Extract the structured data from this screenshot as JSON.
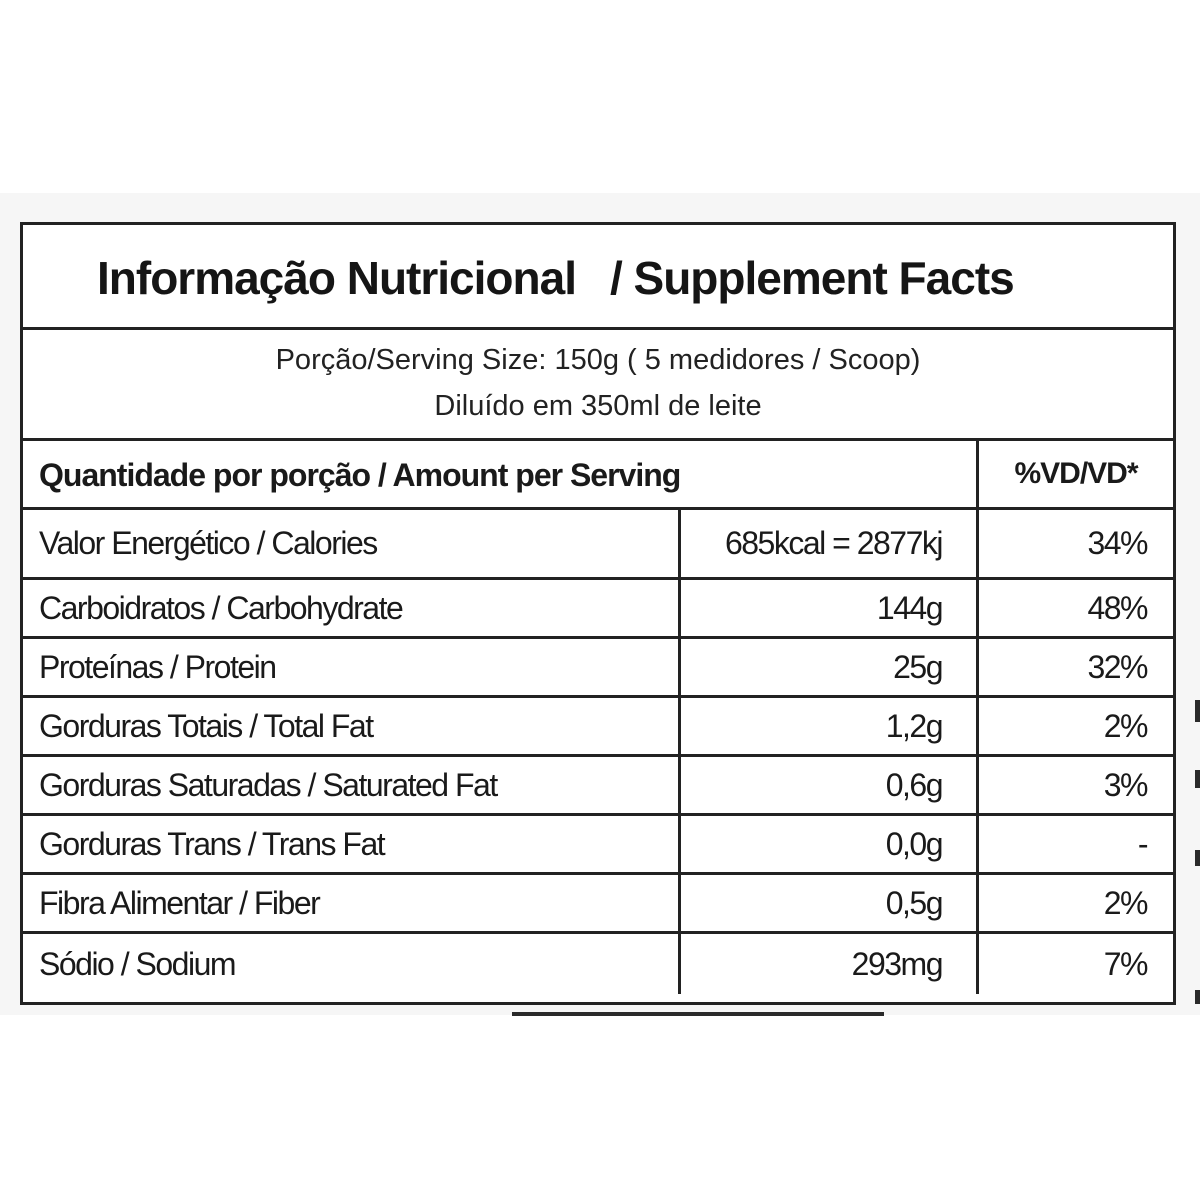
{
  "label": {
    "title_pt": "Informação Nutricional",
    "title_en": "/ Supplement Facts",
    "serving_line1": "Porção/Serving Size: 150g ( 5 medidores / Scoop)",
    "serving_line2": "Diluído em 350ml de leite",
    "header_amount": "Quantidade por porção  / Amount per Serving",
    "header_vd": "%VD/VD*"
  },
  "nutrients": [
    {
      "name": "Valor Energético / Calories",
      "amount": "685kcal = 2877kj",
      "vd": "34%"
    },
    {
      "name": "Carboidratos / Carbohydrate",
      "amount": "144g",
      "vd": "48%"
    },
    {
      "name": "Proteínas / Protein",
      "amount": "25g",
      "vd": "32%"
    },
    {
      "name": "Gorduras Totais / Total Fat",
      "amount": "1,2g",
      "vd": "2%"
    },
    {
      "name": "Gorduras Saturadas / Saturated Fat",
      "amount": "0,6g",
      "vd": "3%"
    },
    {
      "name": "Gorduras Trans / Trans Fat",
      "amount": "0,0g",
      "vd": "-"
    },
    {
      "name": "Fibra Alimentar / Fiber",
      "amount": "0,5g",
      "vd": "2%"
    },
    {
      "name": "Sódio / Sodium",
      "amount": "293mg",
      "vd": "7%"
    }
  ]
}
